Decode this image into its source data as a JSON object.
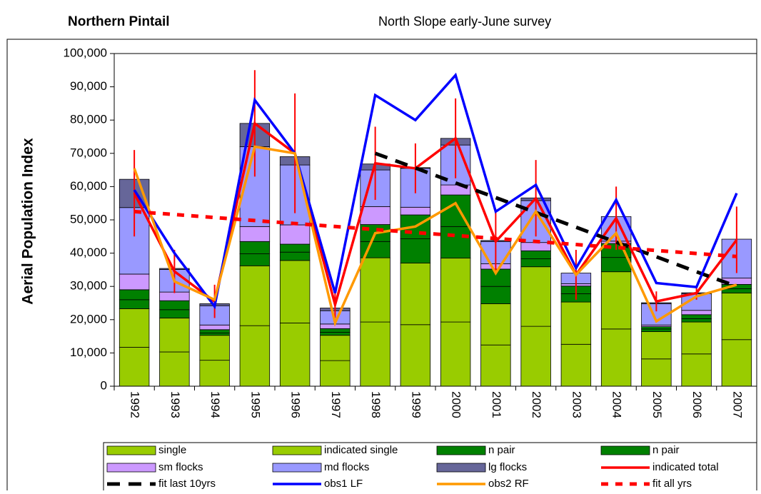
{
  "chart_data": {
    "type": "bar",
    "title": "Northern Pintail",
    "subtitle": "North Slope early-June survey",
    "y_label": "Aerial Population Index",
    "categories": [
      "1992",
      "1993",
      "1994",
      "1995",
      "1996",
      "1997",
      "1998",
      "1999",
      "2000",
      "2001",
      "2002",
      "2003",
      "2004",
      "2005",
      "2006",
      "2007"
    ],
    "ylim": [
      0,
      100000
    ],
    "yticks": [
      0,
      {
        "value": 10000,
        "label": "10,000"
      },
      {
        "value": 20000,
        "label": "20,000"
      },
      {
        "value": 30000,
        "label": "30,000"
      },
      {
        "value": 40000,
        "label": "40,000"
      },
      {
        "value": 50000,
        "label": "50,000"
      },
      {
        "value": 60000,
        "label": "60,000"
      },
      {
        "value": 70000,
        "label": "70,000"
      },
      {
        "value": 80000,
        "label": "80,000"
      },
      {
        "value": 90000,
        "label": "90,000"
      },
      {
        "value": 100000,
        "label": "100,000"
      }
    ],
    "series": [
      {
        "name": "single",
        "type": "bar",
        "color": "#99cc00",
        "values": [
          11700,
          10300,
          7800,
          18200,
          19000,
          7700,
          19300,
          18500,
          19300,
          12400,
          18000,
          12600,
          17200,
          8200,
          9700,
          14000
        ]
      },
      {
        "name": "indicated single",
        "type": "bar",
        "color": "#99cc00",
        "values": [
          11600,
          10200,
          7500,
          18000,
          18800,
          7600,
          19300,
          18500,
          19200,
          12400,
          17900,
          12700,
          17200,
          8200,
          9600,
          14000
        ]
      },
      {
        "name": "n pair",
        "type": "bar",
        "color": "#008000",
        "values": [
          2700,
          2500,
          700,
          3600,
          2500,
          900,
          4900,
          7300,
          9500,
          5200,
          2400,
          2500,
          4300,
          800,
          1000,
          1300
        ]
      },
      {
        "name": "n pair",
        "type": "bar",
        "color": "#008000",
        "values": [
          3000,
          2700,
          1000,
          3700,
          2400,
          1100,
          5100,
          7200,
          9500,
          5200,
          2400,
          2300,
          4200,
          700,
          1200,
          1300
        ]
      },
      {
        "name": "sm flocks",
        "type": "bar",
        "color": "#cc99ff",
        "values": [
          4700,
          2600,
          1400,
          4500,
          5800,
          1400,
          5400,
          2300,
          3000,
          1600,
          2500,
          700,
          700,
          500,
          1300,
          1900
        ]
      },
      {
        "name": "md flocks",
        "type": "bar",
        "color": "#9999ff",
        "values": [
          20000,
          6800,
          5800,
          24000,
          18000,
          4000,
          11000,
          11700,
          12000,
          6700,
          12600,
          3200,
          7400,
          6400,
          5000,
          11700
        ]
      },
      {
        "name": "lg flocks",
        "type": "bar",
        "color": "#666699",
        "values": [
          8500,
          300,
          600,
          7000,
          2500,
          800,
          1800,
          200,
          2000,
          300,
          800,
          0,
          0,
          300,
          300,
          0
        ]
      },
      {
        "name": "indicated total",
        "type": "line",
        "color": "#ff0000",
        "dashed": false,
        "values": [
          58000,
          34500,
          25500,
          79000,
          70000,
          24500,
          67000,
          65500,
          74500,
          43500,
          56500,
          33500,
          50500,
          25500,
          28000,
          44000
        ],
        "errors": [
          13000,
          6500,
          5000,
          16000,
          18000,
          4000,
          11000,
          7500,
          12000,
          9000,
          11500,
          7500,
          9500,
          3000,
          2000,
          10000
        ]
      },
      {
        "name": "fit last 10yrs",
        "type": "line",
        "color": "#000000",
        "dashed": true,
        "values": [
          null,
          null,
          null,
          null,
          null,
          null,
          70000,
          65600,
          61100,
          56700,
          52200,
          47800,
          43300,
          38900,
          34400,
          30000
        ]
      },
      {
        "name": "obs1 LF",
        "type": "line",
        "color": "#0000ff",
        "dashed": false,
        "values": [
          59000,
          40000,
          24000,
          86000,
          70000,
          28000,
          87500,
          80000,
          93500,
          52500,
          60500,
          35500,
          56000,
          31000,
          29800,
          58000
        ]
      },
      {
        "name": "obs2 RF",
        "type": "line",
        "color": "#ff9900",
        "dashed": false,
        "values": [
          65500,
          31500,
          26000,
          72000,
          70000,
          19000,
          46000,
          48000,
          55000,
          34000,
          52500,
          33500,
          46000,
          19500,
          27000,
          30500
        ]
      },
      {
        "name": "fit all yrs",
        "type": "line",
        "color": "#ff0000",
        "dashed": true,
        "values": [
          52500,
          51600,
          50700,
          49800,
          48900,
          48000,
          47100,
          46200,
          45300,
          44400,
          43500,
          42600,
          41700,
          40800,
          39900,
          39000
        ]
      }
    ]
  }
}
